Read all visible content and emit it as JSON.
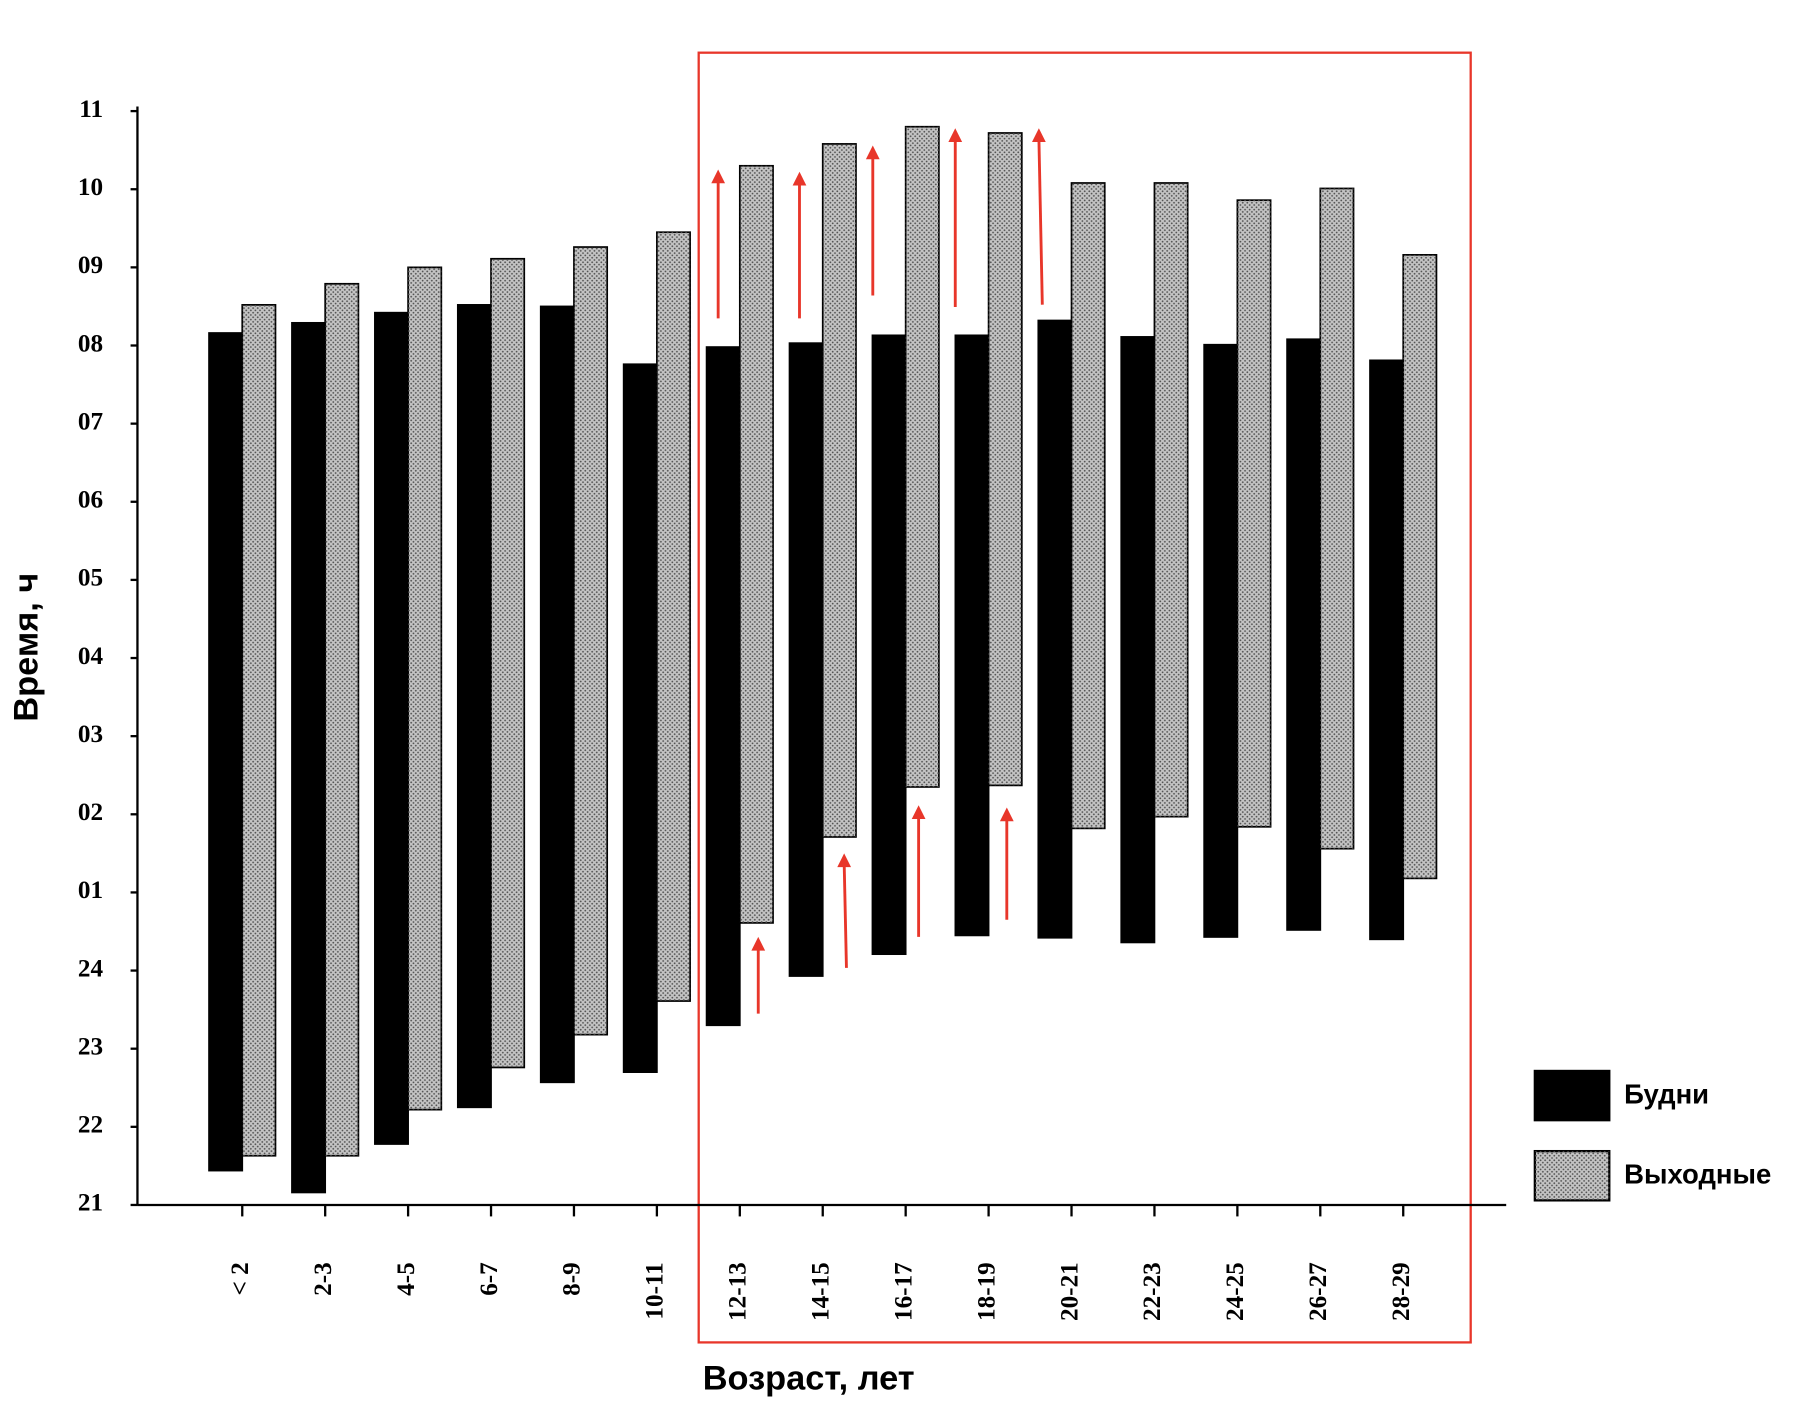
{
  "chart_data": {
    "type": "floating-bar",
    "y_label": "Время, ч",
    "x_label": "Возраст, лет",
    "categories": [
      "< 2",
      "2-3",
      "4-5",
      "6-7",
      "8-9",
      "10-11",
      "12-13",
      "14-15",
      "16-17",
      "18-19",
      "20-21",
      "22-23",
      "24-25",
      "26-27",
      "28-29"
    ],
    "series": [
      {
        "name": "Будни",
        "color": "#000000",
        "start": [
          21.44,
          21.16,
          21.78,
          22.25,
          22.57,
          22.7,
          23.3,
          23.93,
          24.21,
          24.45,
          24.42,
          24.36,
          24.43,
          24.52,
          24.4
        ],
        "end": [
          32.16,
          32.29,
          32.42,
          32.52,
          32.5,
          31.76,
          31.98,
          32.03,
          32.13,
          32.13,
          32.32,
          32.11,
          32.01,
          32.08,
          31.81
        ]
      },
      {
        "name": "Выходные",
        "color": "#c4c4c4",
        "start": [
          21.63,
          21.63,
          22.22,
          22.76,
          23.18,
          23.61,
          24.61,
          25.71,
          26.35,
          26.37,
          25.82,
          25.97,
          25.84,
          25.56,
          25.18
        ],
        "end": [
          32.52,
          32.79,
          33.0,
          33.11,
          33.26,
          33.45,
          34.3,
          34.58,
          34.8,
          34.72,
          34.08,
          34.08,
          33.86,
          34.01,
          33.16
        ]
      }
    ],
    "ylim": [
      21,
      35
    ],
    "yticks": [
      21,
      22,
      23,
      24,
      {
        "value": 25,
        "label": "01"
      },
      {
        "value": 26,
        "label": "02"
      },
      {
        "value": 27,
        "label": "03"
      },
      {
        "value": 28,
        "label": "04"
      },
      {
        "value": 29,
        "label": "05"
      },
      {
        "value": 30,
        "label": "06"
      },
      {
        "value": 31,
        "label": "07"
      },
      {
        "value": 32,
        "label": "08"
      },
      {
        "value": 33,
        "label": "09"
      },
      {
        "value": 34,
        "label": "10"
      },
      {
        "value": 35,
        "label": "11"
      }
    ],
    "legend": "right"
  }
}
